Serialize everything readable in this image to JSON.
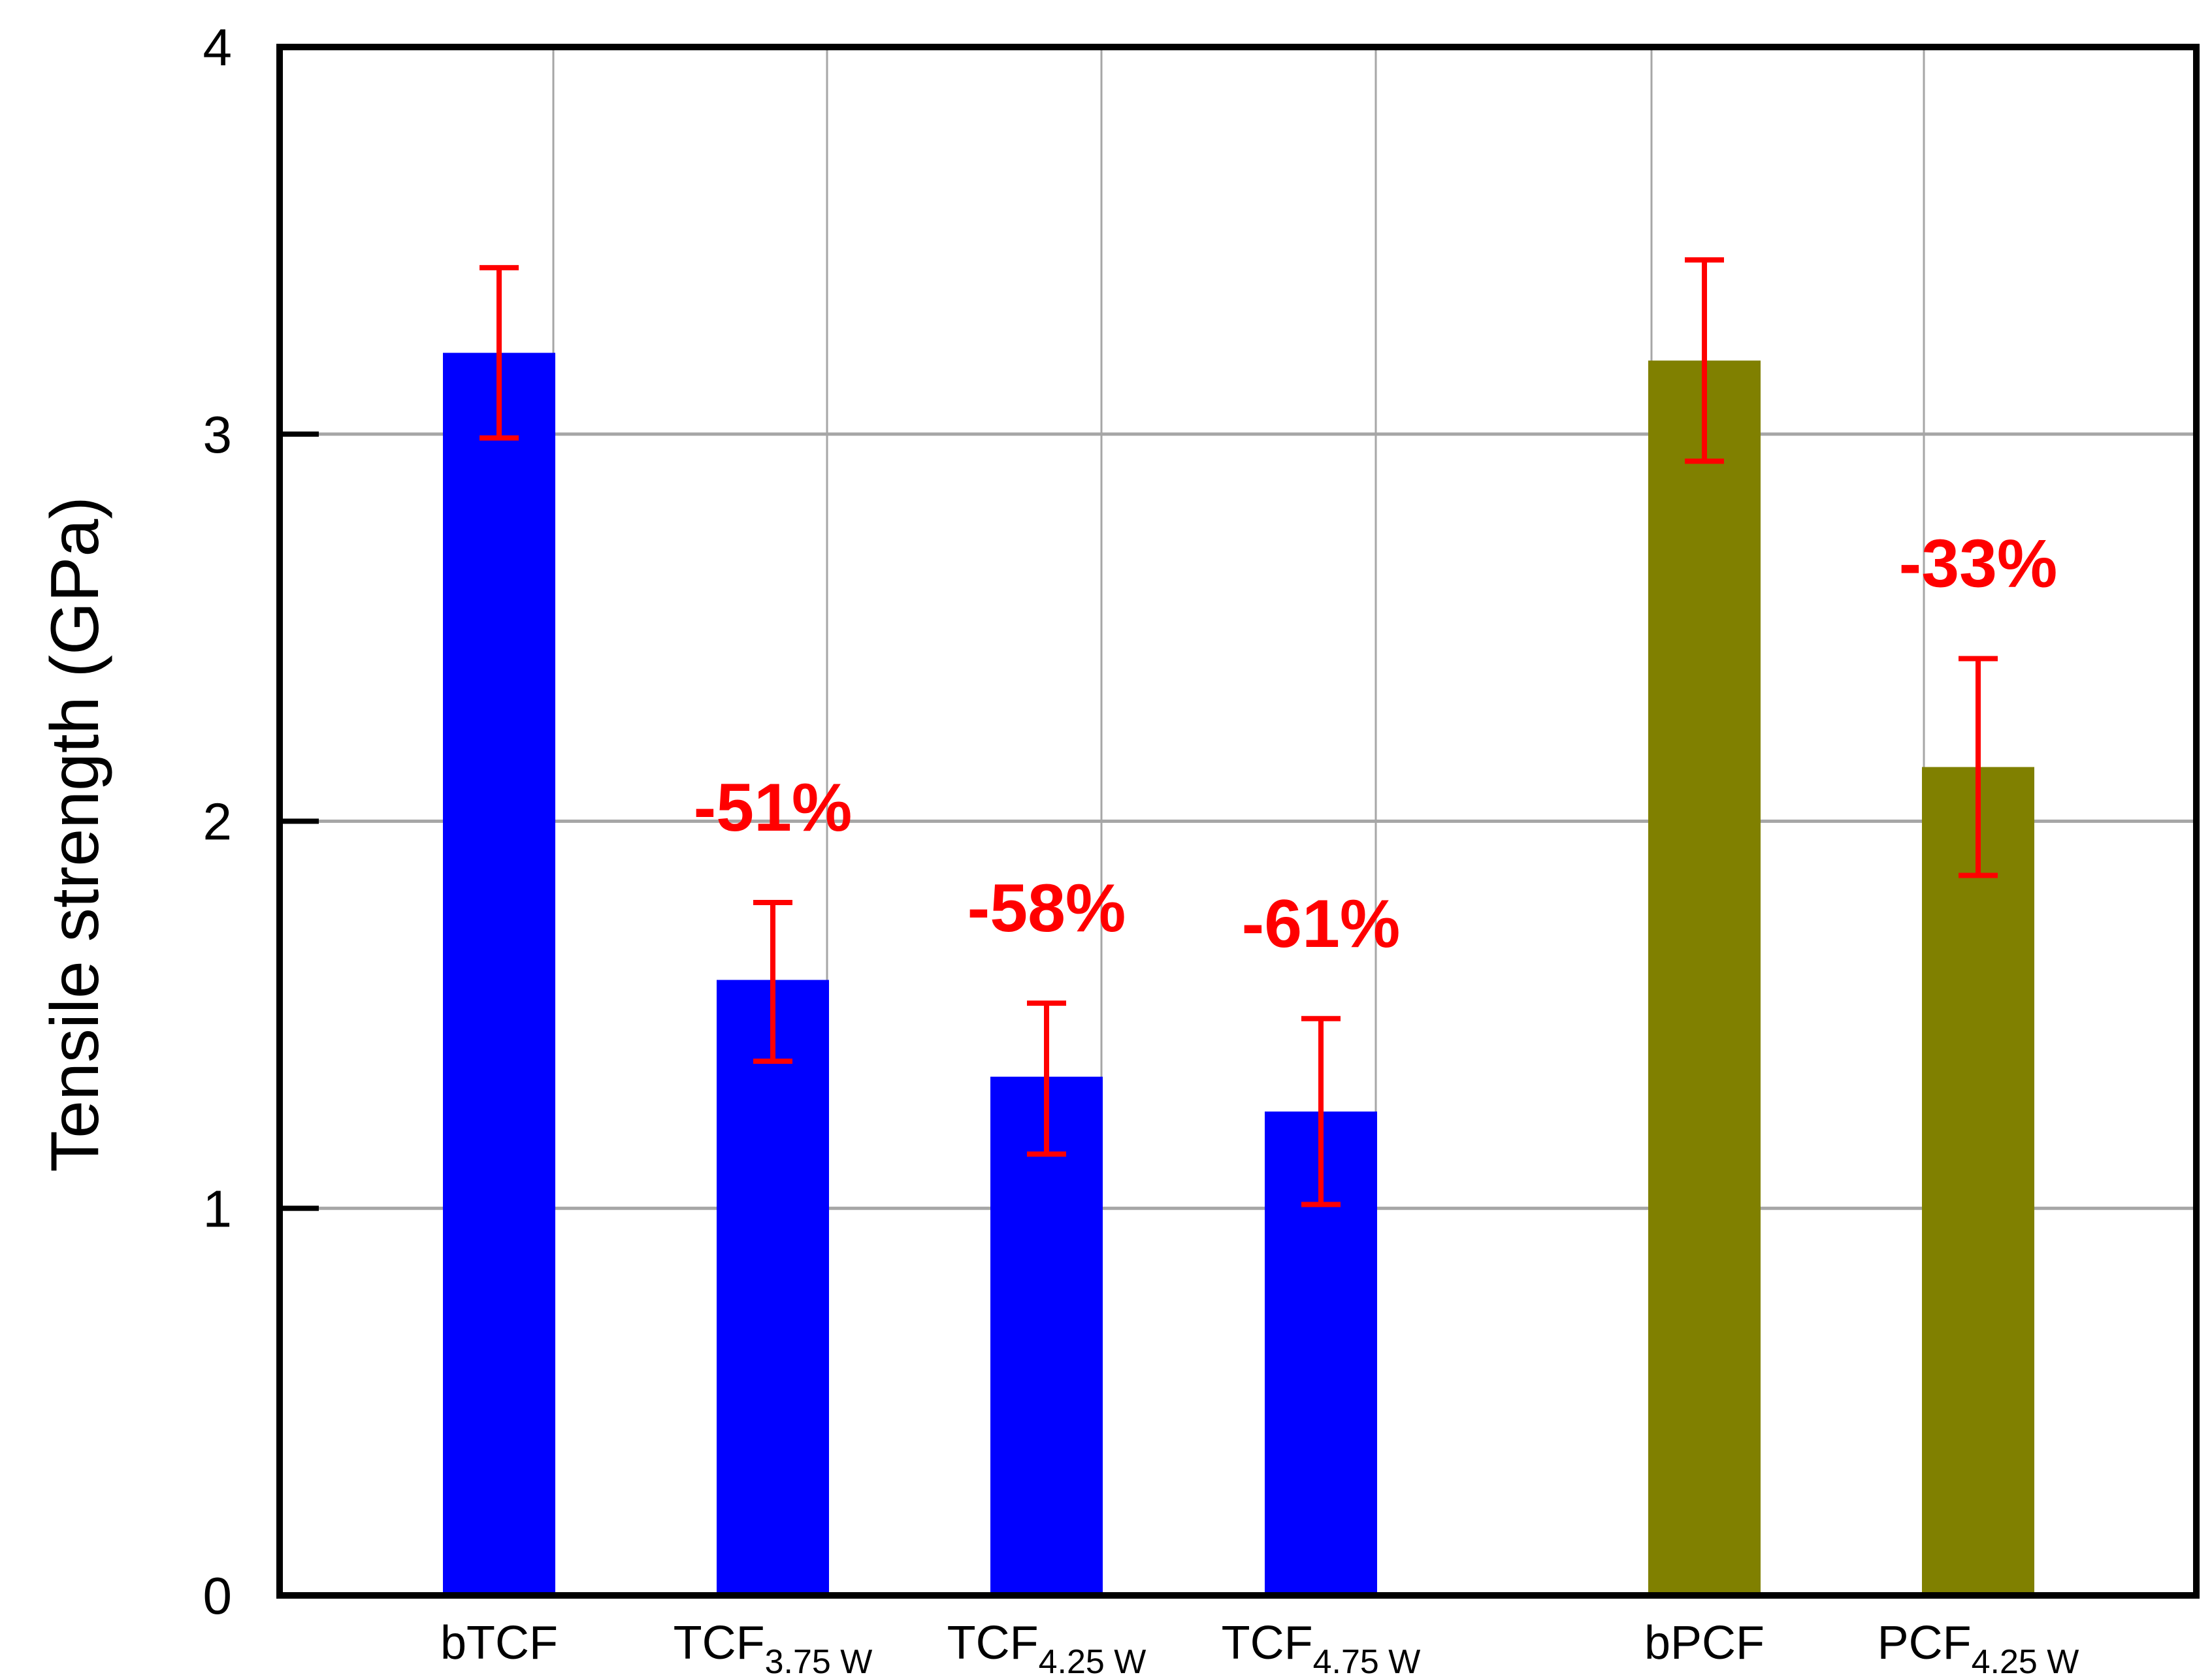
{
  "chart_data": {
    "type": "bar",
    "title": "",
    "xlabel": "",
    "ylabel": "Tensile strength (GPa)",
    "ylim": [
      0,
      4
    ],
    "yticks": [
      "0",
      "1",
      "2",
      "3",
      "4"
    ],
    "grid": true,
    "categories": [
      {
        "main": "bTCF",
        "sub": ""
      },
      {
        "main": "TCF",
        "sub": "3.75 W"
      },
      {
        "main": "TCF",
        "sub": "4.25 W"
      },
      {
        "main": "TCF",
        "sub": "4.75 W"
      },
      {
        "main": "bPCF",
        "sub": ""
      },
      {
        "main": "PCF",
        "sub": "4.25 W"
      }
    ],
    "values": [
      3.21,
      1.59,
      1.34,
      1.25,
      3.19,
      2.14
    ],
    "error_low": [
      2.99,
      1.38,
      1.14,
      1.01,
      2.93,
      1.86
    ],
    "error_high": [
      3.43,
      1.79,
      1.53,
      1.49,
      3.45,
      2.42
    ],
    "bar_colors": [
      "#0000ff",
      "#0000ff",
      "#0000ff",
      "#0000ff",
      "#808000",
      "#808000"
    ],
    "error_color": "#ff0000",
    "annotations": [
      {
        "text": "",
        "category": 0
      },
      {
        "text": "-51%",
        "category": 1
      },
      {
        "text": "-58%",
        "category": 2
      },
      {
        "text": "-61%",
        "category": 3
      },
      {
        "text": "",
        "category": 4
      },
      {
        "text": "-33%",
        "category": 5
      }
    ]
  }
}
